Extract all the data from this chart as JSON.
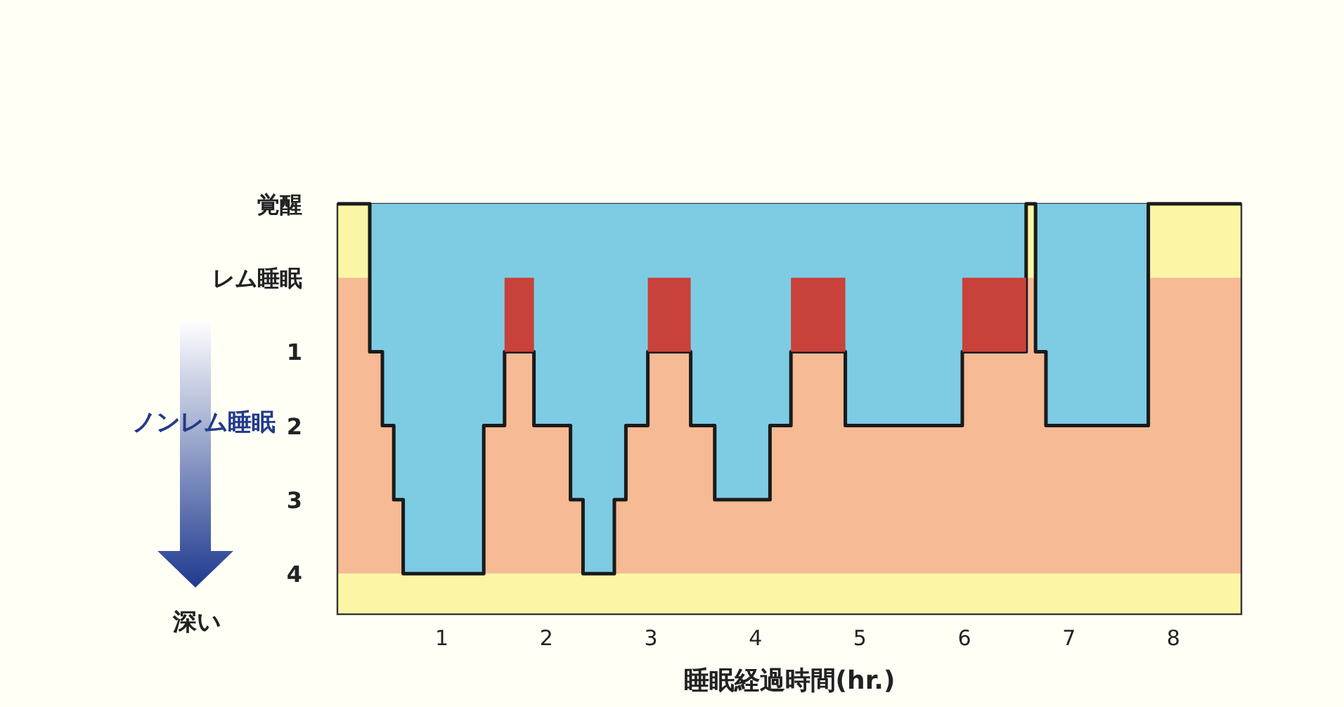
{
  "chart_data": {
    "type": "area",
    "xlabel": "睡眠経過時間(hr.)",
    "xlim": [
      0,
      8.65
    ],
    "xticks": [
      1,
      2,
      3,
      4,
      5,
      6,
      7,
      8
    ],
    "ylim": [
      4.55,
      -1
    ],
    "yticks": [
      {
        "value": -1,
        "label": "覚醒"
      },
      {
        "value": 0,
        "label": "レム睡眠"
      },
      1,
      2,
      3,
      4
    ],
    "bands": [
      {
        "axis": "y",
        "from": -1,
        "to": 0,
        "color": "#fbf6a6"
      },
      {
        "axis": "y",
        "from": 0,
        "to": 4,
        "color": "#f6ba94"
      },
      {
        "axis": "y",
        "from": 4,
        "to": 4.55,
        "color": "#fbf6a6"
      }
    ],
    "series": [
      {
        "color": "#7dcce4",
        "x": [
          0,
          0.31,
          0.31,
          0.43,
          0.43,
          0.54,
          0.54,
          0.63,
          0.63,
          1.4,
          1.4,
          1.6,
          1.6,
          1.88,
          1.88,
          2.23,
          2.23,
          2.35,
          2.35,
          2.65,
          2.65,
          2.76,
          2.76,
          2.97,
          2.97,
          3.38,
          3.38,
          3.61,
          3.61,
          4.14,
          4.14,
          4.34,
          4.34,
          4.86,
          4.86,
          5.98,
          5.98,
          6.59,
          6.59,
          6.68,
          6.68,
          6.78,
          6.78,
          7.76,
          7.76,
          8.65
        ],
        "values": [
          -1,
          -1,
          1,
          1,
          2,
          2,
          3,
          3,
          4,
          4,
          2,
          2,
          1,
          1,
          2,
          2,
          3,
          3,
          4,
          4,
          3,
          3,
          2,
          2,
          1,
          1,
          2,
          2,
          3,
          3,
          2,
          2,
          1,
          1,
          2,
          2,
          1,
          1,
          -1,
          -1,
          1,
          1,
          2,
          2,
          -1,
          -1
        ]
      },
      {
        "color": "#c8413a",
        "x": [
          1.6,
          1.88
        ],
        "values": [
          1,
          1
        ]
      },
      {
        "color": "#c8413a",
        "x": [
          2.97,
          3.38
        ],
        "values": [
          1,
          1
        ]
      },
      {
        "color": "#c8413a",
        "x": [
          4.34,
          4.86
        ],
        "values": [
          1,
          1
        ]
      },
      {
        "color": "#c8413a",
        "x": [
          5.98,
          6.59
        ],
        "values": [
          1,
          1
        ]
      }
    ],
    "annotations": [
      "ノンレム睡眠",
      "深い"
    ],
    "grid": false,
    "marker": "none",
    "line_style": "solid"
  }
}
